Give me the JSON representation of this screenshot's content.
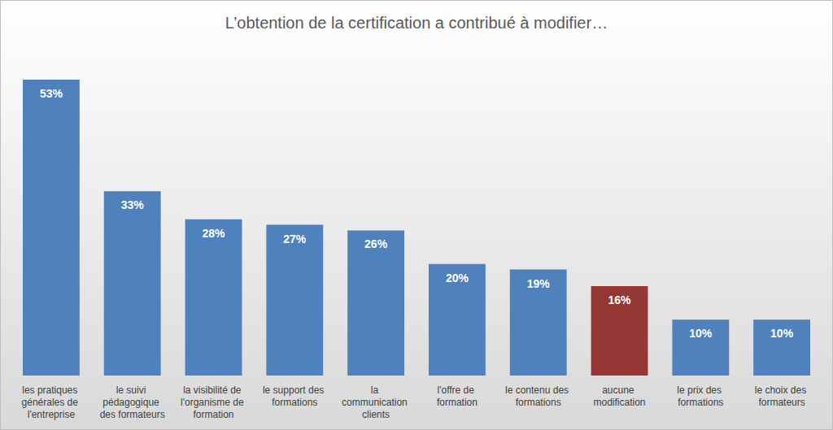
{
  "chart_data": {
    "type": "bar",
    "title": "L’obtention de la certification a contribué à modifier…",
    "categories": [
      "les pratiques générales de l'entreprise",
      "le suivi pédagogique des formateurs",
      "la visibilité de l'organisme de formation",
      "le support des formations",
      "la communication clients",
      "l'offre de formation",
      "le contenu des formations",
      "aucune modification",
      "le prix des formations",
      "le choix des formateurs"
    ],
    "values": [
      53,
      33,
      28,
      27,
      26,
      20,
      19,
      16,
      10,
      10
    ],
    "value_labels": [
      "53%",
      "33%",
      "28%",
      "27%",
      "26%",
      "20%",
      "19%",
      "16%",
      "10%",
      "10%"
    ],
    "colors": [
      "#4f81bd",
      "#4f81bd",
      "#4f81bd",
      "#4f81bd",
      "#4f81bd",
      "#4f81bd",
      "#4f81bd",
      "#953735",
      "#4f81bd",
      "#4f81bd"
    ],
    "ylim": [
      0,
      53
    ],
    "grid": false,
    "data_labels": true,
    "tick_labels": "x"
  }
}
